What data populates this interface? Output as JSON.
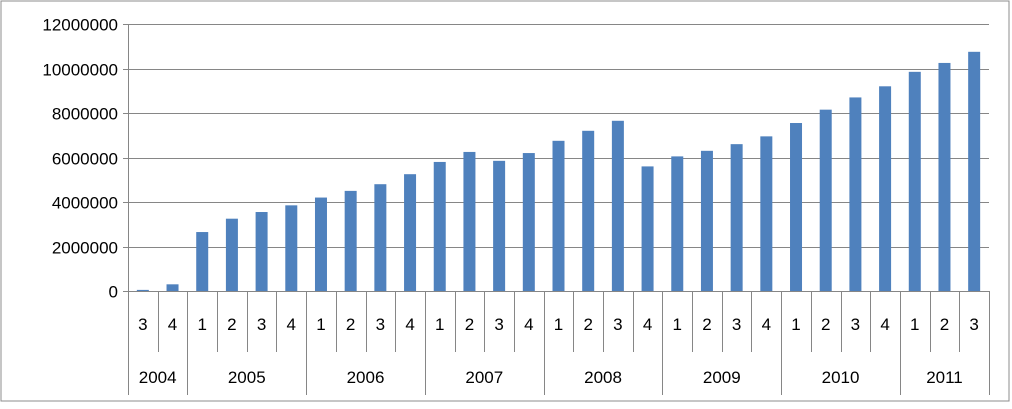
{
  "chart_data": {
    "type": "bar",
    "title": "",
    "xlabel": "",
    "ylabel": "",
    "ylim": [
      0,
      12000000
    ],
    "yticks": [
      0,
      2000000,
      4000000,
      6000000,
      8000000,
      10000000,
      12000000
    ],
    "ytick_labels": [
      "0",
      "2000000",
      "4000000",
      "6000000",
      "8000000",
      "10000000",
      "12000000"
    ],
    "grid": true,
    "legend": "none",
    "bar_color": "#4F81BD",
    "groups": [
      {
        "label": "2004",
        "quarters": [
          "3",
          "4"
        ]
      },
      {
        "label": "2005",
        "quarters": [
          "1",
          "2",
          "3",
          "4"
        ]
      },
      {
        "label": "2006",
        "quarters": [
          "1",
          "2",
          "3",
          "4"
        ]
      },
      {
        "label": "2007",
        "quarters": [
          "1",
          "2",
          "3",
          "4"
        ]
      },
      {
        "label": "2008",
        "quarters": [
          "1",
          "2",
          "3",
          "4"
        ]
      },
      {
        "label": "2009",
        "quarters": [
          "1",
          "2",
          "3",
          "4"
        ]
      },
      {
        "label": "2010",
        "quarters": [
          "1",
          "2",
          "3",
          "4"
        ]
      },
      {
        "label": "2011",
        "quarters": [
          "1",
          "2",
          "3"
        ]
      }
    ],
    "values": [
      50000,
      300000,
      2650000,
      3250000,
      3550000,
      3850000,
      4200000,
      4500000,
      4800000,
      5250000,
      5800000,
      6250000,
      5850000,
      6200000,
      6750000,
      7200000,
      7650000,
      5600000,
      6050000,
      6300000,
      6600000,
      6950000,
      7550000,
      8150000,
      8700000,
      9200000,
      9850000,
      10250000,
      10750000
    ]
  }
}
